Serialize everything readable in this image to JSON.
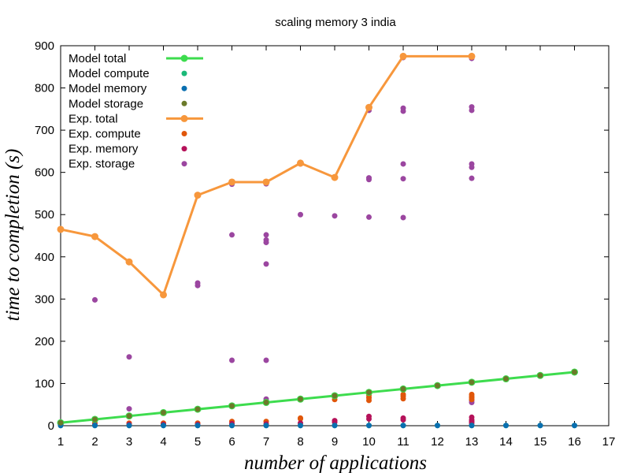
{
  "chart_data": {
    "type": "scatter",
    "title": "scaling memory 3 india",
    "xlabel": "number of applications",
    "ylabel": "time to completion (s)",
    "xlim": [
      1,
      17
    ],
    "ylim": [
      0,
      900
    ],
    "x_ticks": [
      "1",
      "2",
      "3",
      "4",
      "5",
      "6",
      "7",
      "8",
      "9",
      "10",
      "11",
      "12",
      "13",
      "14",
      "15",
      "16",
      "17"
    ],
    "y_ticks": [
      "0",
      "100",
      "200",
      "300",
      "400",
      "500",
      "600",
      "700",
      "800",
      "900"
    ],
    "grid": false,
    "legend_position": "top-left",
    "series": [
      {
        "name": "Model total",
        "kind": "line-points",
        "color": "#3ddc4e",
        "x": [
          1,
          2,
          3,
          4,
          5,
          6,
          7,
          8,
          9,
          10,
          11,
          12,
          13,
          14,
          15,
          16
        ],
        "y": [
          7,
          15,
          23,
          31,
          39,
          47,
          55,
          63,
          71,
          79,
          87,
          95,
          103,
          111,
          119,
          127
        ]
      },
      {
        "name": "Model compute",
        "kind": "points",
        "color": "#1ab978",
        "x": [
          1,
          2,
          3,
          4,
          5,
          6,
          7,
          8,
          9,
          10,
          11,
          12,
          13,
          14,
          15,
          16
        ],
        "y": [
          0.5,
          0.5,
          0.5,
          0.5,
          0.5,
          0.5,
          0.5,
          0.5,
          0.5,
          0.5,
          0.5,
          0.5,
          0.5,
          0.5,
          0.5,
          0.5
        ]
      },
      {
        "name": "Model memory",
        "kind": "points",
        "color": "#0a6fb0",
        "x": [
          1,
          2,
          3,
          4,
          5,
          6,
          7,
          8,
          9,
          10,
          11,
          12,
          13,
          14,
          15,
          16
        ],
        "y": [
          0.5,
          0.5,
          0.5,
          0.5,
          0.5,
          0.5,
          0.5,
          0.5,
          0.5,
          0.5,
          0.5,
          0.5,
          0.5,
          0.5,
          0.5,
          0.5
        ]
      },
      {
        "name": "Model storage",
        "kind": "points",
        "color": "#6b7a2a",
        "x": [
          1,
          2,
          3,
          4,
          5,
          6,
          7,
          8,
          9,
          10,
          11,
          12,
          13,
          14,
          15,
          16
        ],
        "y": [
          7,
          15,
          23,
          31,
          39,
          47,
          55,
          63,
          71,
          79,
          87,
          95,
          103,
          111,
          119,
          127
        ]
      },
      {
        "name": "Exp.  total",
        "kind": "line-points",
        "color": "#f7973c",
        "x": [
          1,
          2,
          3,
          4,
          5,
          6,
          7,
          8,
          9,
          10,
          11,
          13
        ],
        "y": [
          465,
          448,
          388,
          310,
          546,
          577,
          577,
          622,
          588,
          754,
          875,
          875
        ]
      },
      {
        "name": "Exp.  compute",
        "kind": "points",
        "color": "#e0560a",
        "x": [
          1,
          2,
          3,
          4,
          5,
          6,
          7,
          8,
          8,
          9,
          9,
          9,
          10,
          10,
          10,
          11,
          11,
          11,
          13,
          13,
          13,
          13
        ],
        "y": [
          6,
          6,
          6,
          6,
          6,
          10,
          10,
          18,
          16,
          72,
          68,
          62,
          72,
          66,
          60,
          74,
          70,
          64,
          74,
          70,
          66,
          62
        ]
      },
      {
        "name": "Exp.  memory",
        "kind": "points",
        "color": "#b5125a",
        "x": [
          1,
          2,
          3,
          4,
          5,
          6,
          7,
          8,
          9,
          9,
          10,
          10,
          11,
          11,
          13,
          13,
          13,
          13
        ],
        "y": [
          2,
          2,
          3,
          3,
          3,
          5,
          4,
          6,
          12,
          8,
          22,
          16,
          18,
          14,
          20,
          14,
          10,
          6
        ]
      },
      {
        "name": "Exp.  storage",
        "kind": "points",
        "color": "#9b46a0",
        "x": [
          1,
          2,
          2,
          3,
          3,
          3,
          4,
          5,
          5,
          6,
          6,
          6,
          7,
          7,
          7,
          7,
          7,
          7,
          7,
          8,
          8,
          9,
          9,
          10,
          10,
          10,
          10,
          11,
          11,
          11,
          11,
          11,
          11,
          13,
          13,
          13,
          13,
          13,
          13,
          13,
          13
        ],
        "y": [
          465,
          448,
          298,
          388,
          163,
          40,
          310,
          338,
          332,
          572,
          452,
          155,
          573,
          452,
          440,
          434,
          383,
          155,
          63,
          620,
          500,
          588,
          497,
          747,
          587,
          583,
          494,
          872,
          752,
          745,
          620,
          585,
          493,
          870,
          755,
          747,
          620,
          612,
          586,
          60,
          55
        ]
      }
    ]
  }
}
